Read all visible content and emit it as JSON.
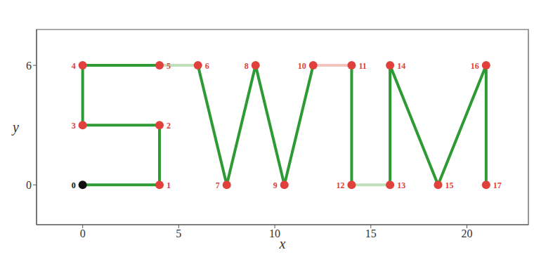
{
  "chart_data": {
    "type": "line",
    "x_label": "x",
    "y_label": "y",
    "xlim": [
      -2.4,
      23.2
    ],
    "ylim": [
      -2,
      7.8
    ],
    "xticks": [
      0,
      5,
      10,
      15,
      20
    ],
    "yticks": [
      0,
      6
    ],
    "series": [
      {
        "type": "line",
        "color": "#2e9a35",
        "x": [
          0,
          4,
          4,
          0,
          0,
          4
        ],
        "values": [
          0,
          0,
          3,
          3,
          6,
          6
        ]
      },
      {
        "type": "line",
        "color": "#2e9a35",
        "x": [
          6,
          7.5,
          9,
          10.5,
          12
        ],
        "values": [
          6,
          0,
          6,
          0,
          6
        ]
      },
      {
        "type": "line",
        "color": "#2e9a35",
        "x": [
          14,
          14
        ],
        "values": [
          6,
          0
        ]
      },
      {
        "type": "line",
        "color": "#2e9a35",
        "x": [
          16,
          16,
          18.5,
          21,
          21
        ],
        "values": [
          0,
          6,
          0,
          6,
          0
        ]
      },
      {
        "type": "line",
        "color": "#bfe0b8",
        "x": [
          4,
          6
        ],
        "values": [
          6,
          6
        ]
      },
      {
        "type": "line",
        "color": "#f2c4c0",
        "x": [
          12,
          14
        ],
        "values": [
          6,
          6
        ]
      },
      {
        "type": "line",
        "color": "#bfe0b8",
        "x": [
          14,
          16
        ],
        "values": [
          0,
          0
        ]
      },
      {
        "type": "scatter",
        "marker": "circle",
        "x": [
          0,
          4,
          4,
          0,
          0,
          4,
          6,
          7.5,
          9,
          10.5,
          12,
          14,
          14,
          16,
          16,
          18.5,
          21,
          21
        ],
        "values": [
          0,
          0,
          3,
          3,
          6,
          6,
          6,
          0,
          6,
          0,
          6,
          6,
          0,
          0,
          6,
          0,
          6,
          0
        ],
        "labels": [
          "0",
          "1",
          "2",
          "3",
          "4",
          "5",
          "6",
          "7",
          "8",
          "9",
          "10",
          "11",
          "12",
          "13",
          "14",
          "15",
          "16",
          "17"
        ],
        "colors": [
          "#111111",
          "#e0413c",
          "#e0413c",
          "#e0413c",
          "#e0413c",
          "#e0413c",
          "#e0413c",
          "#e0413c",
          "#e0413c",
          "#e0413c",
          "#e0413c",
          "#e0413c",
          "#e0413c",
          "#e0413c",
          "#e0413c",
          "#e0413c",
          "#e0413c",
          "#e0413c"
        ]
      }
    ]
  }
}
